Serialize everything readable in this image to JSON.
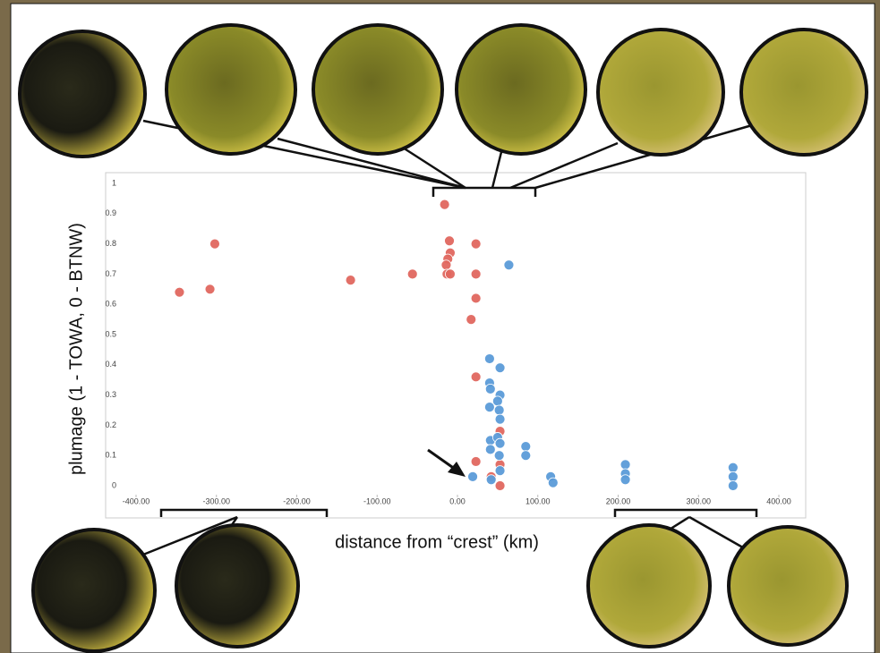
{
  "chart_data": {
    "type": "scatter",
    "x_label": "distance from “crest” (km)",
    "y_label": "plumage (1 - TOWA, 0 - BTNW)",
    "xlim": [
      -400,
      400
    ],
    "xticks": [
      {
        "value": -400,
        "label": "-400.00"
      },
      {
        "value": -300,
        "label": "-300.00"
      },
      {
        "value": -200,
        "label": "-200.00"
      },
      {
        "value": -100,
        "label": "-100.00"
      },
      {
        "value": 0,
        "label": "0.00"
      },
      {
        "value": 100,
        "label": "100.00"
      },
      {
        "value": 200,
        "label": "200.00"
      },
      {
        "value": 300,
        "label": "300.00"
      },
      {
        "value": 400,
        "label": "400.00"
      }
    ],
    "ylim": [
      0,
      1
    ],
    "yticks": [
      0,
      0.1,
      0.2,
      0.3,
      0.4,
      0.5,
      0.6,
      0.7,
      0.8,
      0.9,
      1
    ],
    "series": [
      {
        "color": "#e0675f",
        "x": [
          -346,
          -308,
          -302,
          -133,
          -56,
          -16,
          -10,
          -9,
          -12,
          -14,
          -13,
          -9,
          23,
          23,
          23,
          17,
          23,
          23,
          42,
          53,
          53,
          53
        ],
        "values": [
          0.64,
          0.65,
          0.8,
          0.68,
          0.7,
          0.93,
          0.81,
          0.77,
          0.75,
          0.73,
          0.7,
          0.7,
          0.8,
          0.7,
          0.62,
          0.55,
          0.36,
          0.08,
          0.03,
          0.18,
          0.07,
          0.0
        ]
      },
      {
        "color": "#5b9bd8",
        "x": [
          64,
          40,
          53,
          40,
          41,
          53,
          50,
          40,
          52,
          53,
          41,
          50,
          53,
          41,
          85,
          85,
          52,
          53,
          19,
          42,
          116,
          119,
          209,
          209,
          209,
          343,
          343,
          343
        ],
        "values": [
          0.73,
          0.42,
          0.39,
          0.34,
          0.32,
          0.3,
          0.28,
          0.26,
          0.25,
          0.22,
          0.15,
          0.16,
          0.14,
          0.12,
          0.13,
          0.1,
          0.1,
          0.05,
          0.03,
          0.02,
          0.03,
          0.01,
          0.07,
          0.04,
          0.02,
          0.06,
          0.03,
          0.0
        ]
      }
    ]
  }
}
